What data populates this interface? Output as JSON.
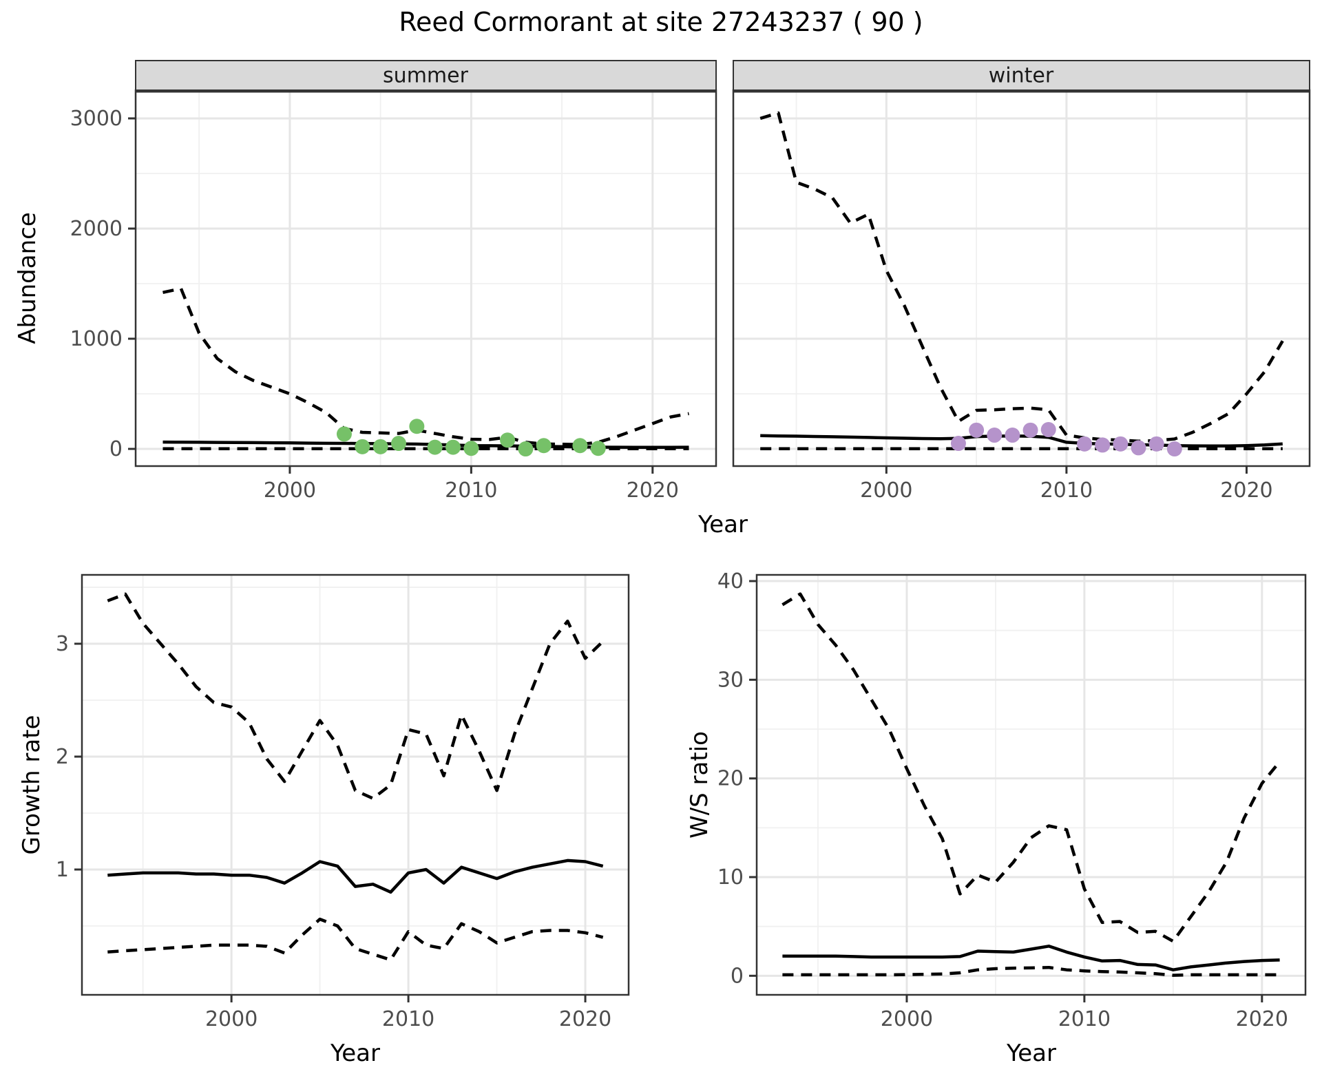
{
  "title": "Reed Cormorant at site 27243237 ( 90 )",
  "axis_titles": {
    "abundance": "Abundance",
    "year_top": "Year",
    "growth": "Growth rate",
    "ws": "W/S ratio",
    "year_bottom_left": "Year",
    "year_bottom_right": "Year"
  },
  "colors": {
    "summer_points": "#76C168",
    "winter_points": "#B593CB",
    "line": "#000000",
    "strip_bg": "#D9D9D9",
    "panel_border": "#333333",
    "grid_major": "#E6E6E6",
    "grid_minor": "#F0F0F0",
    "tick_label": "#4D4D4D",
    "tick_mark": "#333333"
  },
  "chart_data": [
    {
      "id": "abundance-summer",
      "type": "line",
      "facet_label": "summer",
      "xlabel": "Year",
      "ylabel": "Abundance",
      "x_domain": [
        1991.5,
        2023.5
      ],
      "y_domain": [
        -156,
        3256
      ],
      "x_ticks": [
        2000,
        2010,
        2020
      ],
      "x_minor": [
        1995,
        2005,
        2015
      ],
      "y_ticks": [
        0,
        1000,
        2000,
        3000
      ],
      "y_minor": [
        500,
        1500,
        2500
      ],
      "years": [
        1993,
        1994,
        1995,
        1996,
        1997,
        1998,
        1999,
        2000,
        2001,
        2002,
        2003,
        2004,
        2005,
        2006,
        2007,
        2008,
        2009,
        2010,
        2011,
        2012,
        2013,
        2014,
        2015,
        2016,
        2017,
        2018,
        2019,
        2020,
        2021,
        2022
      ],
      "series": [
        {
          "name": "upper_ci",
          "style": "dashed",
          "values": [
            1420,
            1455,
            1050,
            820,
            700,
            620,
            560,
            500,
            420,
            330,
            185,
            150,
            145,
            140,
            170,
            140,
            110,
            88,
            85,
            105,
            60,
            45,
            42,
            40,
            60,
            110,
            170,
            230,
            290,
            320
          ]
        },
        {
          "name": "fit",
          "style": "solid",
          "values": [
            62,
            61,
            60,
            59,
            58,
            57,
            56,
            55,
            53,
            51,
            50,
            49,
            48,
            46,
            44,
            40,
            35,
            30,
            29,
            28,
            25,
            22,
            20,
            18,
            16,
            15,
            14,
            14,
            14,
            15
          ]
        },
        {
          "name": "lower_ci",
          "style": "dashed",
          "values": [
            2,
            2,
            2,
            2,
            2,
            2,
            2,
            2,
            2,
            2,
            2,
            2,
            2,
            2,
            2,
            2,
            2,
            2,
            2,
            2,
            2,
            2,
            2,
            2,
            2,
            2,
            2,
            2,
            2,
            2
          ]
        }
      ],
      "points": {
        "name": "observed-counts-summer",
        "color": "#76C168",
        "data": [
          [
            2003,
            135
          ],
          [
            2004,
            20
          ],
          [
            2005,
            20
          ],
          [
            2006,
            50
          ],
          [
            2007,
            205
          ],
          [
            2008,
            15
          ],
          [
            2009,
            15
          ],
          [
            2010,
            5
          ],
          [
            2012,
            80
          ],
          [
            2013,
            0
          ],
          [
            2014,
            30
          ],
          [
            2016,
            30
          ],
          [
            2017,
            5
          ]
        ]
      }
    },
    {
      "id": "abundance-winter",
      "type": "line",
      "facet_label": "winter",
      "xlabel": "Year",
      "ylabel": "Abundance",
      "x_domain": [
        1991.5,
        2023.5
      ],
      "y_domain": [
        -156,
        3256
      ],
      "x_ticks": [
        2000,
        2010,
        2020
      ],
      "x_minor": [
        1995,
        2005,
        2015
      ],
      "y_ticks": [
        0,
        1000,
        2000,
        3000
      ],
      "y_minor": [
        500,
        1500,
        2500
      ],
      "years": [
        1993,
        1994,
        1995,
        1996,
        1997,
        1998,
        1999,
        2000,
        2001,
        2002,
        2003,
        2004,
        2005,
        2006,
        2007,
        2008,
        2009,
        2010,
        2011,
        2012,
        2013,
        2014,
        2015,
        2016,
        2017,
        2018,
        2019,
        2020,
        2021,
        2022
      ],
      "series": [
        {
          "name": "upper_ci",
          "style": "dashed",
          "values": [
            3000,
            3050,
            2420,
            2360,
            2280,
            2050,
            2130,
            1620,
            1300,
            930,
            560,
            250,
            350,
            355,
            365,
            370,
            355,
            125,
            100,
            85,
            80,
            70,
            75,
            90,
            150,
            230,
            320,
            500,
            700,
            980
          ]
        },
        {
          "name": "fit",
          "style": "solid",
          "values": [
            120,
            118,
            116,
            113,
            110,
            107,
            104,
            100,
            97,
            94,
            92,
            95,
            112,
            116,
            118,
            115,
            105,
            60,
            50,
            45,
            42,
            38,
            35,
            30,
            28,
            27,
            27,
            30,
            36,
            45
          ]
        },
        {
          "name": "lower_ci",
          "style": "dashed",
          "values": [
            2,
            2,
            2,
            2,
            2,
            2,
            2,
            2,
            2,
            2,
            2,
            2,
            2,
            2,
            2,
            2,
            2,
            2,
            2,
            2,
            2,
            2,
            2,
            2,
            2,
            2,
            2,
            2,
            2,
            2
          ]
        }
      ],
      "points": {
        "name": "observed-counts-winter",
        "color": "#B593CB",
        "data": [
          [
            2004,
            50
          ],
          [
            2005,
            170
          ],
          [
            2006,
            125
          ],
          [
            2007,
            125
          ],
          [
            2008,
            170
          ],
          [
            2009,
            175
          ],
          [
            2011,
            45
          ],
          [
            2012,
            35
          ],
          [
            2013,
            45
          ],
          [
            2014,
            10
          ],
          [
            2015,
            45
          ],
          [
            2016,
            0
          ]
        ]
      }
    },
    {
      "id": "growth-rate",
      "type": "line",
      "facet_label": null,
      "xlabel": "Year",
      "ylabel": "Growth rate",
      "x_domain": [
        1991.55,
        2022.45
      ],
      "y_domain": [
        -0.11,
        3.61
      ],
      "x_ticks": [
        2000,
        2010,
        2020
      ],
      "x_minor": [
        1995,
        2005,
        2015
      ],
      "y_ticks": [
        1,
        2,
        3
      ],
      "y_minor": [
        0.5,
        1.5,
        2.5,
        3.5
      ],
      "years": [
        1993,
        1994,
        1995,
        1996,
        1997,
        1998,
        1999,
        2000,
        2001,
        2002,
        2003,
        2004,
        2005,
        2006,
        2007,
        2008,
        2009,
        2010,
        2011,
        2012,
        2013,
        2014,
        2015,
        2016,
        2017,
        2018,
        2019,
        2020,
        2021
      ],
      "series": [
        {
          "name": "upper_ci",
          "style": "dashed",
          "values": [
            3.38,
            3.44,
            3.18,
            3.0,
            2.82,
            2.62,
            2.48,
            2.44,
            2.3,
            1.98,
            1.78,
            2.05,
            2.32,
            2.1,
            1.7,
            1.63,
            1.75,
            2.24,
            2.2,
            1.83,
            2.37,
            2.05,
            1.7,
            2.2,
            2.6,
            3.0,
            3.2,
            2.87,
            3.02
          ]
        },
        {
          "name": "fit",
          "style": "solid",
          "values": [
            0.95,
            0.96,
            0.97,
            0.97,
            0.97,
            0.96,
            0.96,
            0.95,
            0.95,
            0.93,
            0.88,
            0.97,
            1.07,
            1.03,
            0.85,
            0.87,
            0.8,
            0.97,
            1.0,
            0.88,
            1.02,
            0.97,
            0.92,
            0.98,
            1.02,
            1.05,
            1.08,
            1.07,
            1.03
          ]
        },
        {
          "name": "lower_ci",
          "style": "dashed",
          "values": [
            0.27,
            0.28,
            0.29,
            0.3,
            0.31,
            0.32,
            0.33,
            0.33,
            0.33,
            0.32,
            0.26,
            0.42,
            0.56,
            0.5,
            0.3,
            0.25,
            0.2,
            0.45,
            0.33,
            0.3,
            0.52,
            0.45,
            0.35,
            0.4,
            0.45,
            0.46,
            0.46,
            0.44,
            0.4
          ]
        }
      ],
      "points": null
    },
    {
      "id": "ws-ratio",
      "type": "line",
      "facet_label": null,
      "xlabel": "Year",
      "ylabel": "W/S ratio",
      "x_domain": [
        1991.55,
        2022.45
      ],
      "y_domain": [
        -1.93,
        40.63
      ],
      "x_ticks": [
        2000,
        2010,
        2020
      ],
      "x_minor": [
        1995,
        2005,
        2015
      ],
      "y_ticks": [
        0,
        10,
        20,
        30,
        40
      ],
      "y_minor": [
        5,
        15,
        25,
        35
      ],
      "years": [
        1993,
        1994,
        1995,
        1996,
        1997,
        1998,
        1999,
        2000,
        2001,
        2002,
        2003,
        2004,
        2005,
        2006,
        2007,
        2008,
        2009,
        2010,
        2011,
        2012,
        2013,
        2014,
        2015,
        2016,
        2017,
        2018,
        2019,
        2020,
        2021
      ],
      "series": [
        {
          "name": "upper_ci",
          "style": "dashed",
          "values": [
            37.6,
            38.7,
            35.6,
            33.5,
            31.0,
            28.0,
            25.0,
            21.0,
            17.2,
            13.9,
            8.3,
            10.2,
            9.5,
            11.5,
            14.0,
            15.2,
            14.8,
            8.8,
            5.4,
            5.5,
            4.4,
            4.5,
            3.5,
            6.0,
            8.5,
            11.5,
            16.0,
            19.5,
            21.7
          ]
        },
        {
          "name": "fit",
          "style": "solid",
          "values": [
            2.0,
            2.0,
            2.0,
            2.0,
            1.95,
            1.9,
            1.9,
            1.9,
            1.9,
            1.9,
            1.95,
            2.5,
            2.45,
            2.4,
            2.7,
            3.0,
            2.4,
            1.9,
            1.5,
            1.55,
            1.15,
            1.1,
            0.6,
            0.9,
            1.1,
            1.3,
            1.45,
            1.55,
            1.6
          ]
        },
        {
          "name": "lower_ci",
          "style": "dashed",
          "values": [
            0.1,
            0.1,
            0.1,
            0.1,
            0.1,
            0.1,
            0.1,
            0.12,
            0.15,
            0.18,
            0.3,
            0.6,
            0.72,
            0.78,
            0.8,
            0.85,
            0.6,
            0.5,
            0.42,
            0.38,
            0.3,
            0.22,
            0.05,
            0.1,
            0.1,
            0.1,
            0.1,
            0.1,
            0.1
          ]
        }
      ],
      "points": null
    }
  ]
}
